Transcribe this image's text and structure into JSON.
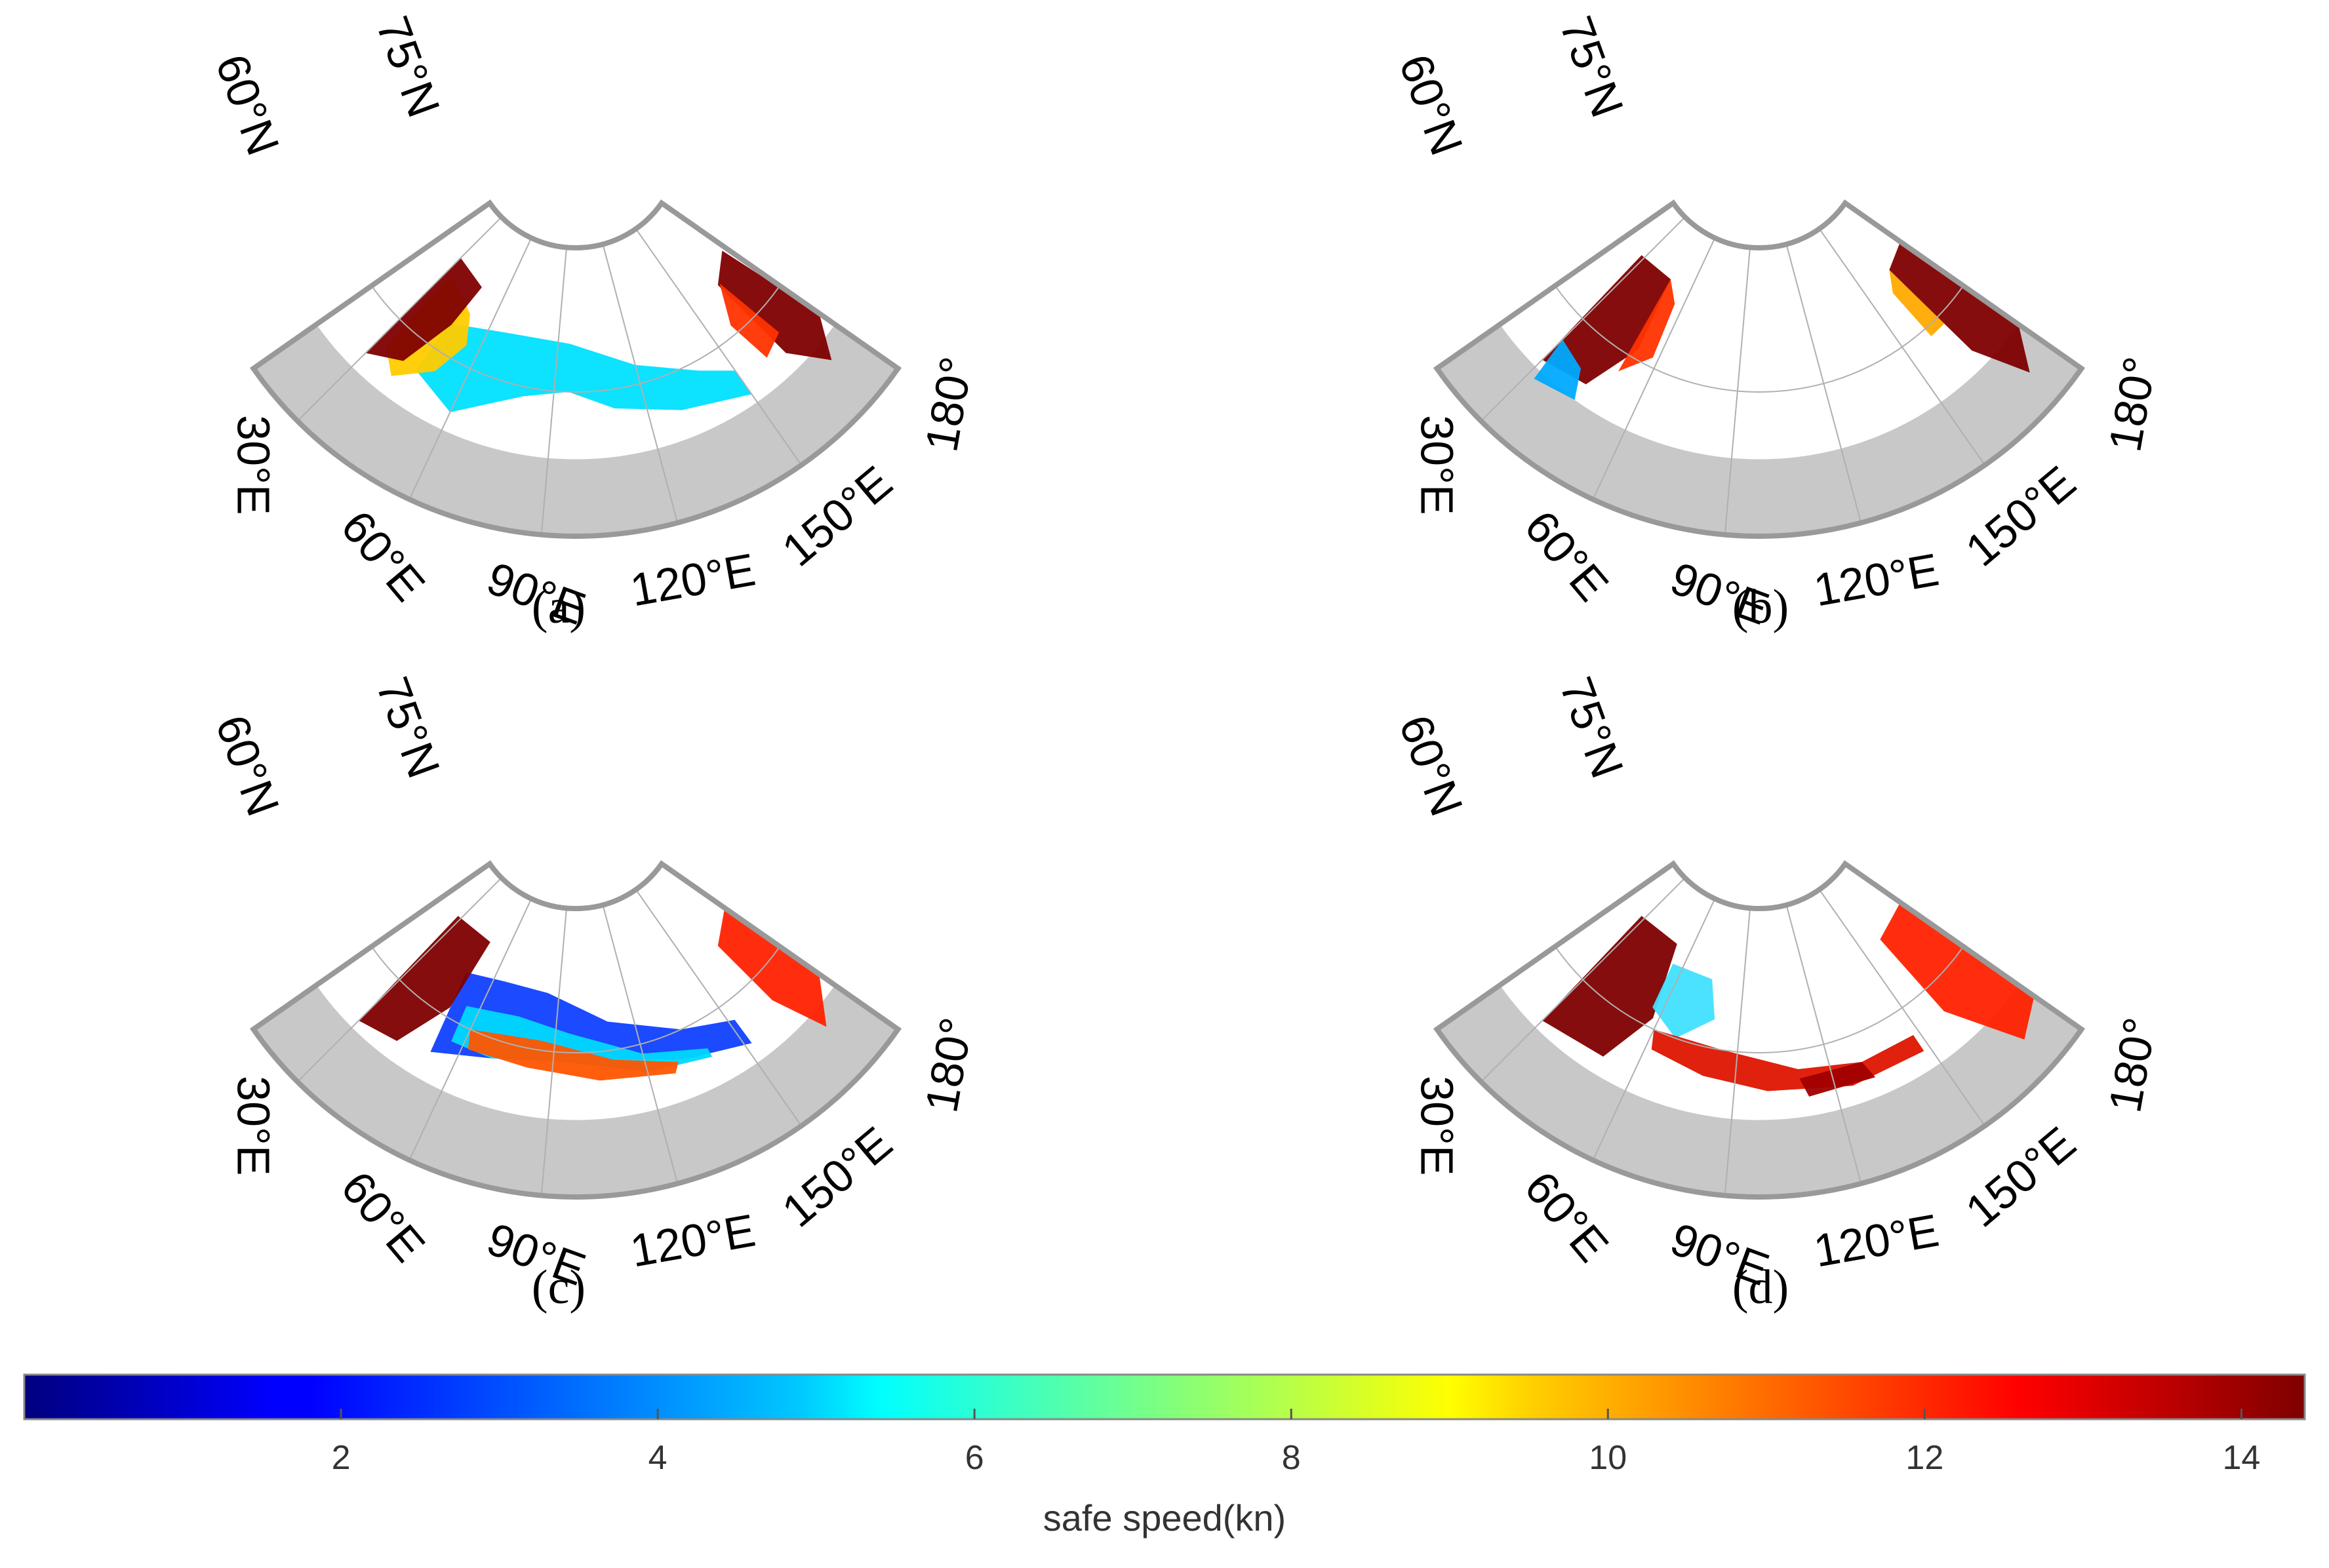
{
  "panels": [
    {
      "id": "a",
      "label": "(a)",
      "variant": "a"
    },
    {
      "id": "b",
      "label": "(b)",
      "variant": "b"
    },
    {
      "id": "c",
      "label": "(c)",
      "variant": "c"
    },
    {
      "id": "d",
      "label": "(d)",
      "variant": "d"
    }
  ],
  "map_labels": {
    "lat_60": "60°N",
    "lat_75": "75°N",
    "lon_30": "30°E",
    "lon_60": "60°E",
    "lon_90": "90°E",
    "lon_120": "120°E",
    "lon_150": "150°E",
    "lon_180": "180°"
  },
  "colorbar": {
    "title": "safe speed(kn)",
    "min": 0,
    "max": 14.4,
    "ticks": [
      2,
      4,
      6,
      8,
      10,
      12,
      14
    ],
    "tick_labels": [
      "2",
      "4",
      "6",
      "8",
      "10",
      "12",
      "14"
    ],
    "colormap": "jet"
  },
  "colors": {
    "land": "#c8c8c8",
    "ice_free_no_data": "#ffffff",
    "graticule": "#b0b0b0",
    "high_speed": "#7f0000"
  }
}
